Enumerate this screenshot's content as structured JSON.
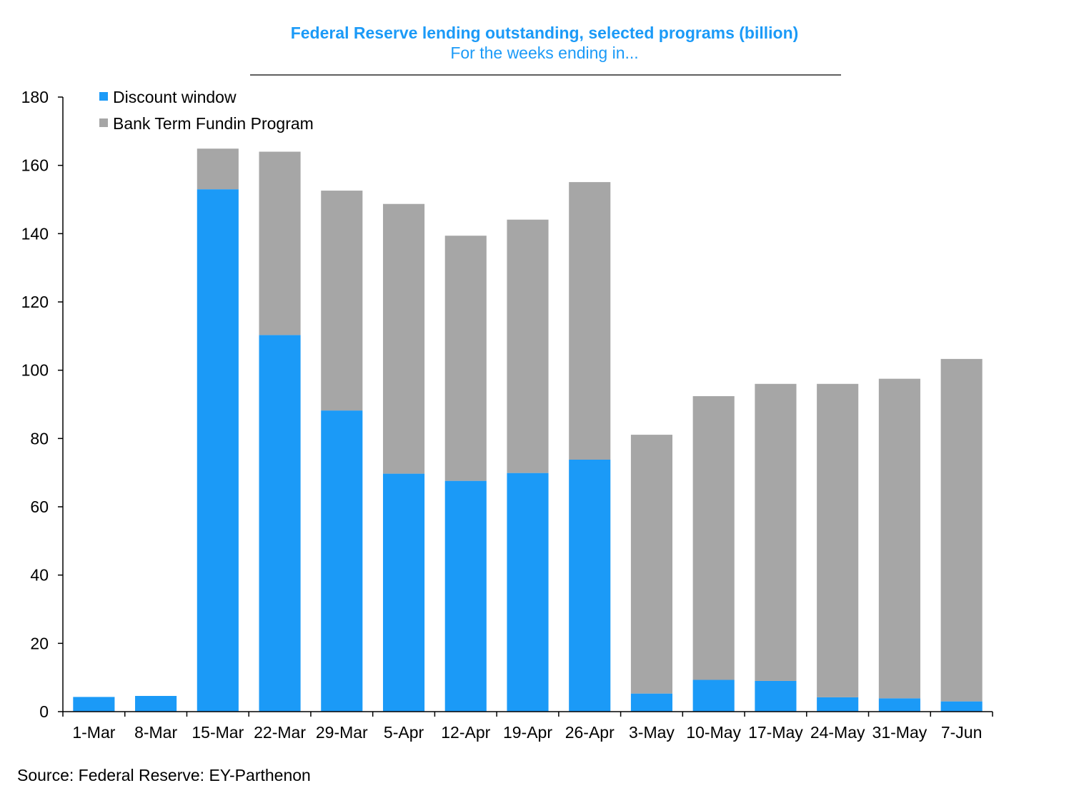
{
  "chart_data": {
    "type": "bar",
    "stacked": true,
    "title": "Federal Reserve lending outstanding, selected programs (billion)",
    "subtitle": "For the weeks ending in...",
    "source": "Source: Federal Reserve: EY-Parthenon",
    "categories": [
      "1-Mar",
      "8-Mar",
      "15-Mar",
      "22-Mar",
      "29-Mar",
      "5-Apr",
      "12-Apr",
      "19-Apr",
      "26-Apr",
      "3-May",
      "10-May",
      "17-May",
      "24-May",
      "31-May",
      "7-Jun"
    ],
    "series": [
      {
        "name": "Discount window",
        "color": "#1b9af7",
        "values": [
          4.3,
          4.6,
          153.0,
          110.3,
          88.2,
          69.7,
          67.6,
          69.9,
          73.8,
          5.3,
          9.3,
          9.0,
          4.2,
          3.9,
          3.0
        ]
      },
      {
        "name": "Bank Term Fundin Program",
        "color": "#a6a6a6",
        "values": [
          0,
          0,
          11.9,
          53.7,
          64.4,
          79.0,
          71.8,
          74.2,
          81.3,
          75.8,
          83.1,
          87.0,
          91.8,
          93.6,
          100.3
        ]
      }
    ],
    "yticks": [
      0,
      20,
      40,
      60,
      80,
      100,
      120,
      140,
      160,
      180
    ],
    "ylim": [
      0,
      180
    ],
    "grid": false,
    "legend_position": "top-left"
  }
}
